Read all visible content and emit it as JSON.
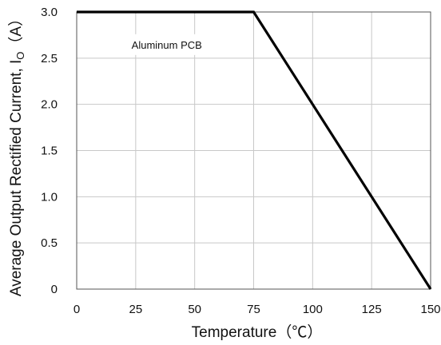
{
  "chart_data": {
    "type": "line",
    "xlabel": "Temperature（℃）",
    "ylabel": "Average Output Rectified Current, I",
    "ylabel_sub": "O",
    "ylabel_unit": "（A）",
    "xlim": [
      0,
      150
    ],
    "ylim": [
      0,
      3.0
    ],
    "xticks": [
      0,
      25,
      50,
      75,
      100,
      125,
      150
    ],
    "xtick_labels": [
      "0",
      "25",
      "50",
      "75",
      "100",
      "125",
      "150"
    ],
    "yticks": [
      0,
      0.5,
      1.0,
      1.5,
      2.0,
      2.5,
      3.0
    ],
    "ytick_labels": [
      "0",
      "0.5",
      "1.0",
      "1.5",
      "2.0",
      "2.5",
      "3.0"
    ],
    "grid": true,
    "series": [
      {
        "name": "Aluminum PCB",
        "x": [
          0,
          75,
          150
        ],
        "y": [
          3.0,
          3.0,
          0
        ]
      }
    ],
    "annotations": [
      {
        "text": "Aluminum PCB",
        "x": 37.5,
        "y": 2.5
      }
    ]
  }
}
